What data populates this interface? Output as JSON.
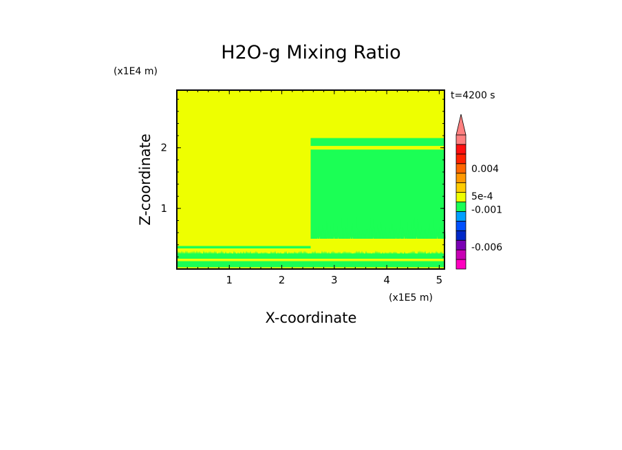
{
  "chart_data": {
    "type": "heatmap",
    "title": "H2O-g Mixing Ratio",
    "xlabel": "X-coordinate",
    "ylabel": "Z-coordinate",
    "x_unit": "(x1E5 m)",
    "y_unit": "(x1E4 m)",
    "time_label": "t=4200 s",
    "xlim": [
      0,
      5.1
    ],
    "ylim": [
      0,
      2.95
    ],
    "x_ticks": [
      {
        "value": 1,
        "label": "1"
      },
      {
        "value": 2,
        "label": "2"
      },
      {
        "value": 3,
        "label": "3"
      },
      {
        "value": 4,
        "label": "4"
      },
      {
        "value": 5,
        "label": "5"
      }
    ],
    "y_ticks": [
      {
        "value": 1,
        "label": "1"
      },
      {
        "value": 2,
        "label": "2"
      }
    ],
    "background_color": "#eeff00",
    "regions": [
      {
        "name": "near-surface-band-lower",
        "x": [
          0,
          5.1
        ],
        "z": [
          0.03,
          0.13
        ],
        "color": "#1bff55"
      },
      {
        "name": "near-surface-band-upper",
        "x": [
          0,
          5.1
        ],
        "z": [
          0.17,
          0.25
        ],
        "color": "#1bff55"
      },
      {
        "name": "thin-green-line",
        "x": [
          0,
          2.55
        ],
        "z": [
          0.34,
          0.38
        ],
        "color": "#1bff55"
      },
      {
        "name": "moist-column",
        "x": [
          2.55,
          5.1
        ],
        "z": [
          0.5,
          1.97
        ],
        "color": "#1bff55"
      },
      {
        "name": "moist-layer-top",
        "x": [
          2.55,
          5.1
        ],
        "z": [
          2.03,
          2.16
        ],
        "color": "#1bff55"
      }
    ],
    "colorbar": {
      "levels": [
        "#ff00c0",
        "#c800b4",
        "#7a00b4",
        "#0028c8",
        "#0050ff",
        "#00a0ff",
        "#1bff55",
        "#eeff00",
        "#ffcc00",
        "#ff9900",
        "#ff6600",
        "#ff2200",
        "#ff1010",
        "#ff8080"
      ],
      "labels": [
        {
          "text": "0.004",
          "level_index": 10.5
        },
        {
          "text": "5e-4",
          "level_index": 7.6
        },
        {
          "text": "-0.001",
          "level_index": 6.2
        },
        {
          "text": "-0.006",
          "level_index": 2.3
        }
      ],
      "extend": "max"
    }
  }
}
